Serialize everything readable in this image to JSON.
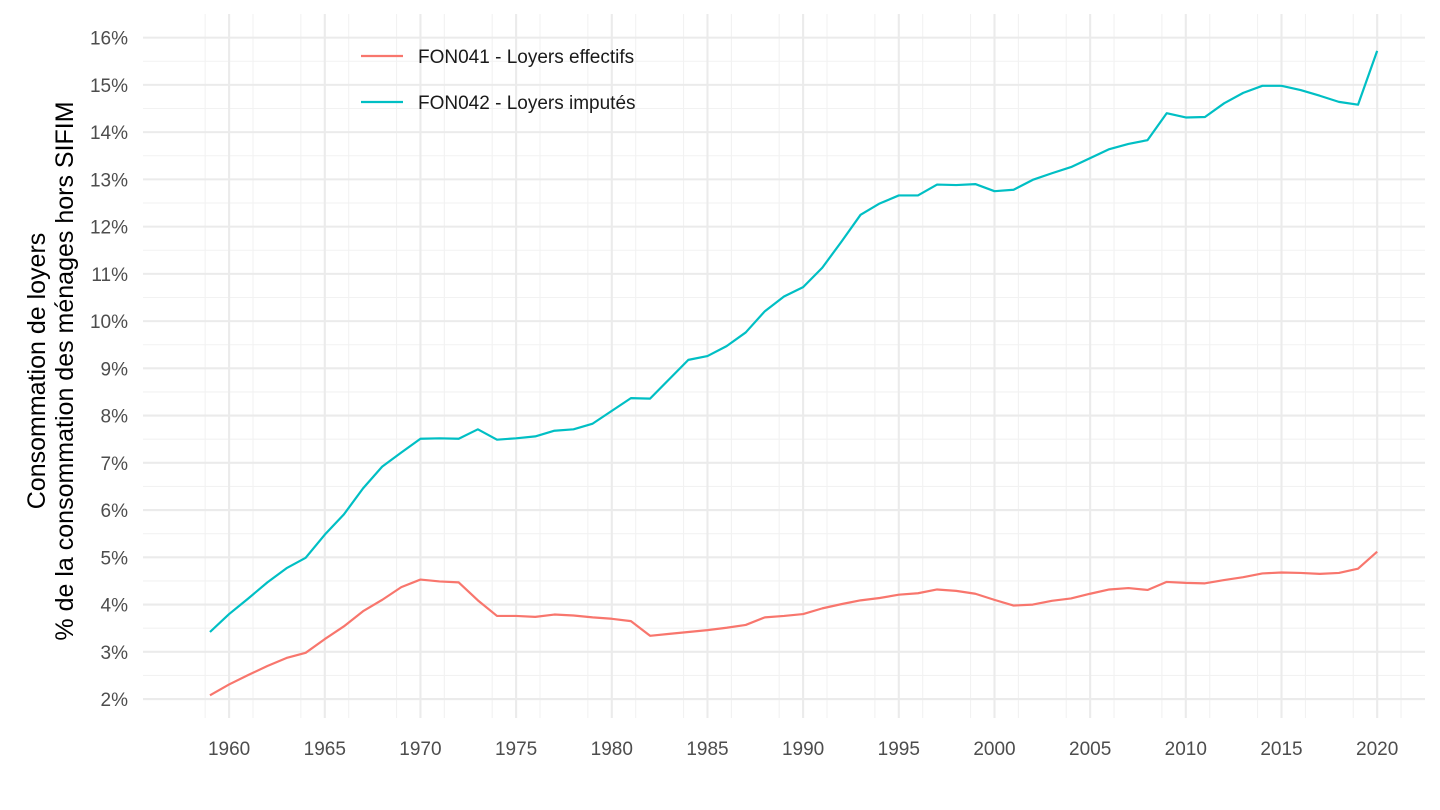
{
  "chart_data": {
    "type": "line",
    "title": "",
    "xlabel": "",
    "ylabel_lines": [
      "Consommation de loyers",
      "% de la consommation des ménages hors SIFIM"
    ],
    "xlim": [
      1955.5,
      2022.5
    ],
    "ylim": [
      1.6,
      16.5
    ],
    "x_ticks": [
      1960,
      1965,
      1970,
      1975,
      1980,
      1985,
      1990,
      1995,
      2000,
      2005,
      2010,
      2015,
      2020
    ],
    "x_tick_labels": [
      "1960",
      "1965",
      "1970",
      "1975",
      "1980",
      "1985",
      "1990",
      "1995",
      "2000",
      "2005",
      "2010",
      "2015",
      "2020"
    ],
    "y_ticks": [
      2,
      3,
      4,
      5,
      6,
      7,
      8,
      9,
      10,
      11,
      12,
      13,
      14,
      15,
      16
    ],
    "y_tick_labels": [
      "2%",
      "3%",
      "4%",
      "5%",
      "6%",
      "7%",
      "8%",
      "9%",
      "10%",
      "11%",
      "12%",
      "13%",
      "14%",
      "15%",
      "16%"
    ],
    "grid": true,
    "legend_position": "top-left",
    "x": [
      1959,
      1960,
      1961,
      1962,
      1963,
      1964,
      1965,
      1966,
      1967,
      1968,
      1969,
      1970,
      1971,
      1972,
      1973,
      1974,
      1975,
      1976,
      1977,
      1978,
      1979,
      1980,
      1981,
      1982,
      1983,
      1984,
      1985,
      1986,
      1987,
      1988,
      1989,
      1990,
      1991,
      1992,
      1993,
      1994,
      1995,
      1996,
      1997,
      1998,
      1999,
      2000,
      2001,
      2002,
      2003,
      2004,
      2005,
      2006,
      2007,
      2008,
      2009,
      2010,
      2011,
      2012,
      2013,
      2014,
      2015,
      2016,
      2017,
      2018,
      2019,
      2020
    ],
    "series": [
      {
        "name": "FON041 - Loyers effectifs",
        "color": "#F8766D",
        "values": [
          2.08,
          2.31,
          2.51,
          2.7,
          2.87,
          2.98,
          3.27,
          3.54,
          3.86,
          4.1,
          4.37,
          4.53,
          4.49,
          4.47,
          4.09,
          3.76,
          3.76,
          3.74,
          3.79,
          3.77,
          3.73,
          3.7,
          3.65,
          3.34,
          3.38,
          3.42,
          3.46,
          3.51,
          3.57,
          3.73,
          3.76,
          3.8,
          3.92,
          4.01,
          4.09,
          4.14,
          4.21,
          4.24,
          4.32,
          4.29,
          4.23,
          4.1,
          3.98,
          4.0,
          4.08,
          4.13,
          4.23,
          4.32,
          4.35,
          4.31,
          4.48,
          4.46,
          4.45,
          4.52,
          4.58,
          4.66,
          4.68,
          4.67,
          4.65,
          4.67,
          4.76,
          5.12
        ]
      },
      {
        "name": "FON042 - Loyers imputés",
        "color": "#00BFC4",
        "values": [
          3.42,
          3.8,
          4.13,
          4.47,
          4.77,
          4.99,
          5.48,
          5.91,
          6.46,
          6.92,
          7.22,
          7.51,
          7.52,
          7.51,
          7.71,
          7.49,
          7.52,
          7.56,
          7.68,
          7.71,
          7.83,
          8.1,
          8.37,
          8.36,
          8.77,
          9.18,
          9.26,
          9.47,
          9.76,
          10.21,
          10.52,
          10.72,
          11.13,
          11.68,
          12.25,
          12.49,
          12.66,
          12.66,
          12.89,
          12.88,
          12.9,
          12.75,
          12.78,
          12.99,
          13.13,
          13.26,
          13.45,
          13.64,
          13.75,
          13.83,
          14.4,
          14.31,
          14.32,
          14.61,
          14.83,
          14.98,
          14.98,
          14.89,
          14.77,
          14.64,
          14.58,
          15.72
        ]
      }
    ]
  }
}
